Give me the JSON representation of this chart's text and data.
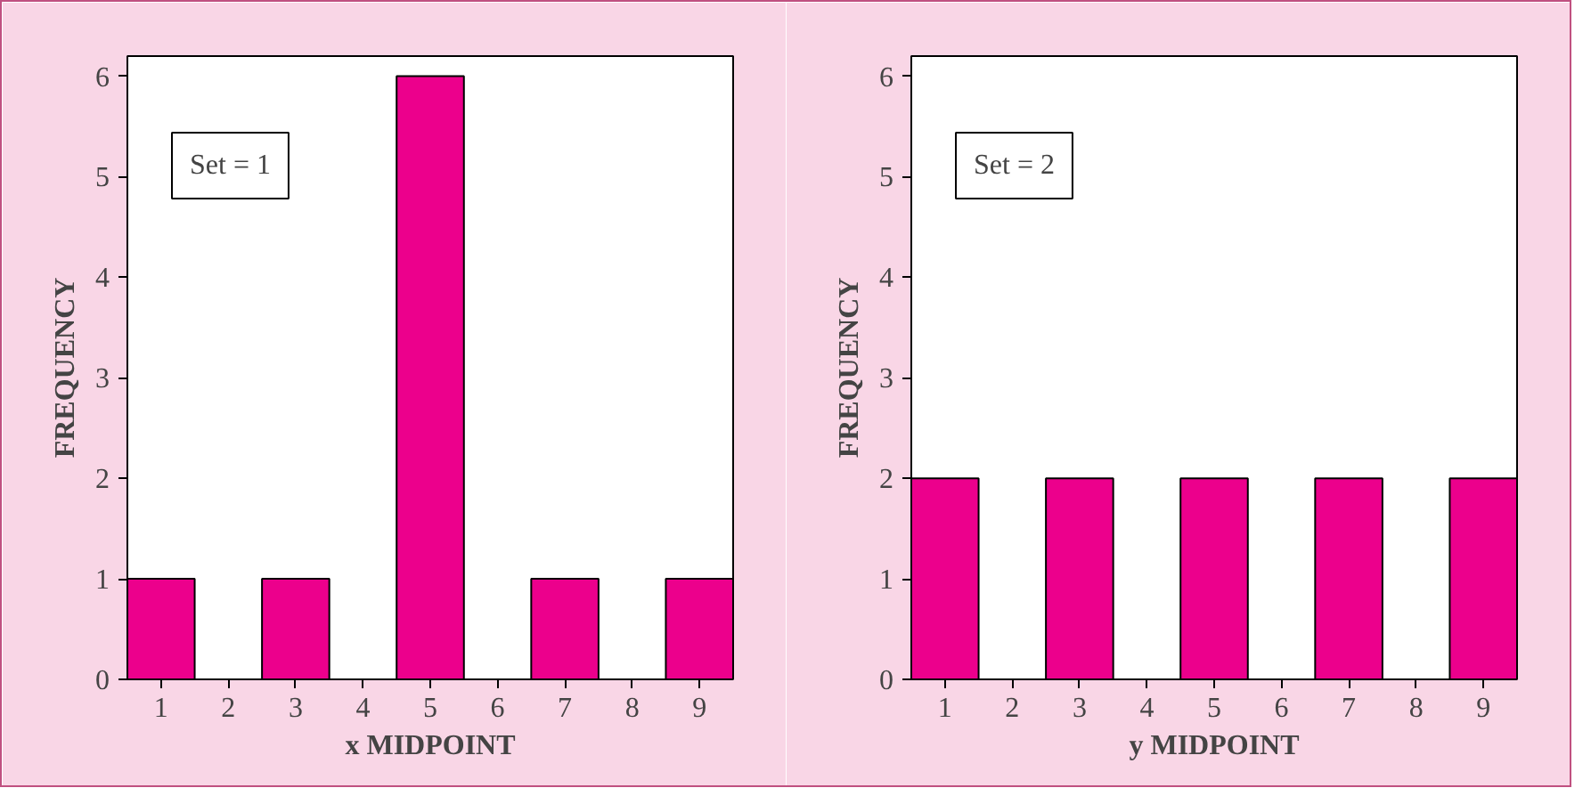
{
  "chart_data": [
    {
      "type": "histogram",
      "bins": [
        0.5,
        1.5,
        2.5,
        3.5,
        4.5,
        5.5,
        6.5,
        7.5,
        8.5,
        9.5
      ],
      "values": [
        1,
        0,
        1,
        0,
        6,
        0,
        1,
        0,
        1
      ],
      "color": "#ec008c",
      "xlabel": "x MIDPOINT",
      "ylabel": "FREQUENCY",
      "xlim": [
        0.5,
        9.5
      ],
      "xticks": [
        1,
        2,
        3,
        4,
        5,
        6,
        7,
        8,
        9
      ],
      "ylim": [
        0,
        6.2
      ],
      "yticks": [
        0,
        1,
        2,
        3,
        4,
        5,
        6
      ],
      "annotations": [
        "Set = 1"
      ],
      "grid": false
    },
    {
      "type": "histogram",
      "bins": [
        0.5,
        1.5,
        2.5,
        3.5,
        4.5,
        5.5,
        6.5,
        7.5,
        8.5,
        9.5
      ],
      "values": [
        2,
        0,
        2,
        0,
        2,
        0,
        2,
        0,
        2
      ],
      "color": "#ec008c",
      "xlabel": "y MIDPOINT",
      "ylabel": "FREQUENCY",
      "xlim": [
        0.5,
        9.5
      ],
      "xticks": [
        1,
        2,
        3,
        4,
        5,
        6,
        7,
        8,
        9
      ],
      "ylim": [
        0,
        6.2
      ],
      "yticks": [
        0,
        1,
        2,
        3,
        4,
        5,
        6
      ],
      "annotations": [
        "Set = 2"
      ],
      "grid": false
    }
  ]
}
